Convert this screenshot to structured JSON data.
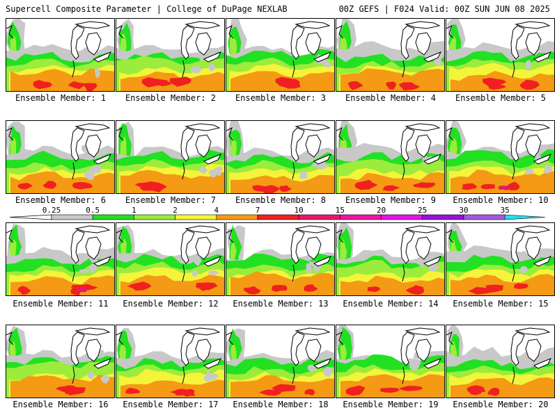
{
  "header": {
    "left": "Supercell Composite Parameter | College of DuPage NEXLAB",
    "right": "00Z GEFS | F024 Valid: 00Z SUN JUN 08 2025"
  },
  "colors": {
    "c0_25": "#c8c8c8",
    "c0_5": "#22e022",
    "c1": "#9bec3c",
    "c2": "#f4f43a",
    "c4": "#f49a14",
    "c7": "#f02020",
    "c10": "#e8186a",
    "c15": "#ee14a4",
    "c20": "#e614e8",
    "c25": "#9a10e0",
    "c30": "#a45ae0",
    "c35": "#24e0e8"
  },
  "legend": {
    "labels": [
      "0.25",
      "0.5",
      "1",
      "2",
      "4",
      "7",
      "10",
      "15",
      "20",
      "25",
      "30",
      "35"
    ]
  },
  "members": [
    {
      "label": "Ensemble Member: 1"
    },
    {
      "label": "Ensemble Member: 2"
    },
    {
      "label": "Ensemble Member: 3"
    },
    {
      "label": "Ensemble Member: 4"
    },
    {
      "label": "Ensemble Member: 5"
    },
    {
      "label": "Ensemble Member: 6"
    },
    {
      "label": "Ensemble Member: 7"
    },
    {
      "label": "Ensemble Member: 8"
    },
    {
      "label": "Ensemble Member: 9"
    },
    {
      "label": "Ensemble Member: 10"
    },
    {
      "label": "Ensemble Member: 11"
    },
    {
      "label": "Ensemble Member: 12"
    },
    {
      "label": "Ensemble Member: 13"
    },
    {
      "label": "Ensemble Member: 14"
    },
    {
      "label": "Ensemble Member: 15"
    },
    {
      "label": "Ensemble Member: 16"
    },
    {
      "label": "Ensemble Member: 17"
    },
    {
      "label": "Ensemble Member: 18"
    },
    {
      "label": "Ensemble Member: 19"
    },
    {
      "label": "Ensemble Member: 20"
    }
  ]
}
